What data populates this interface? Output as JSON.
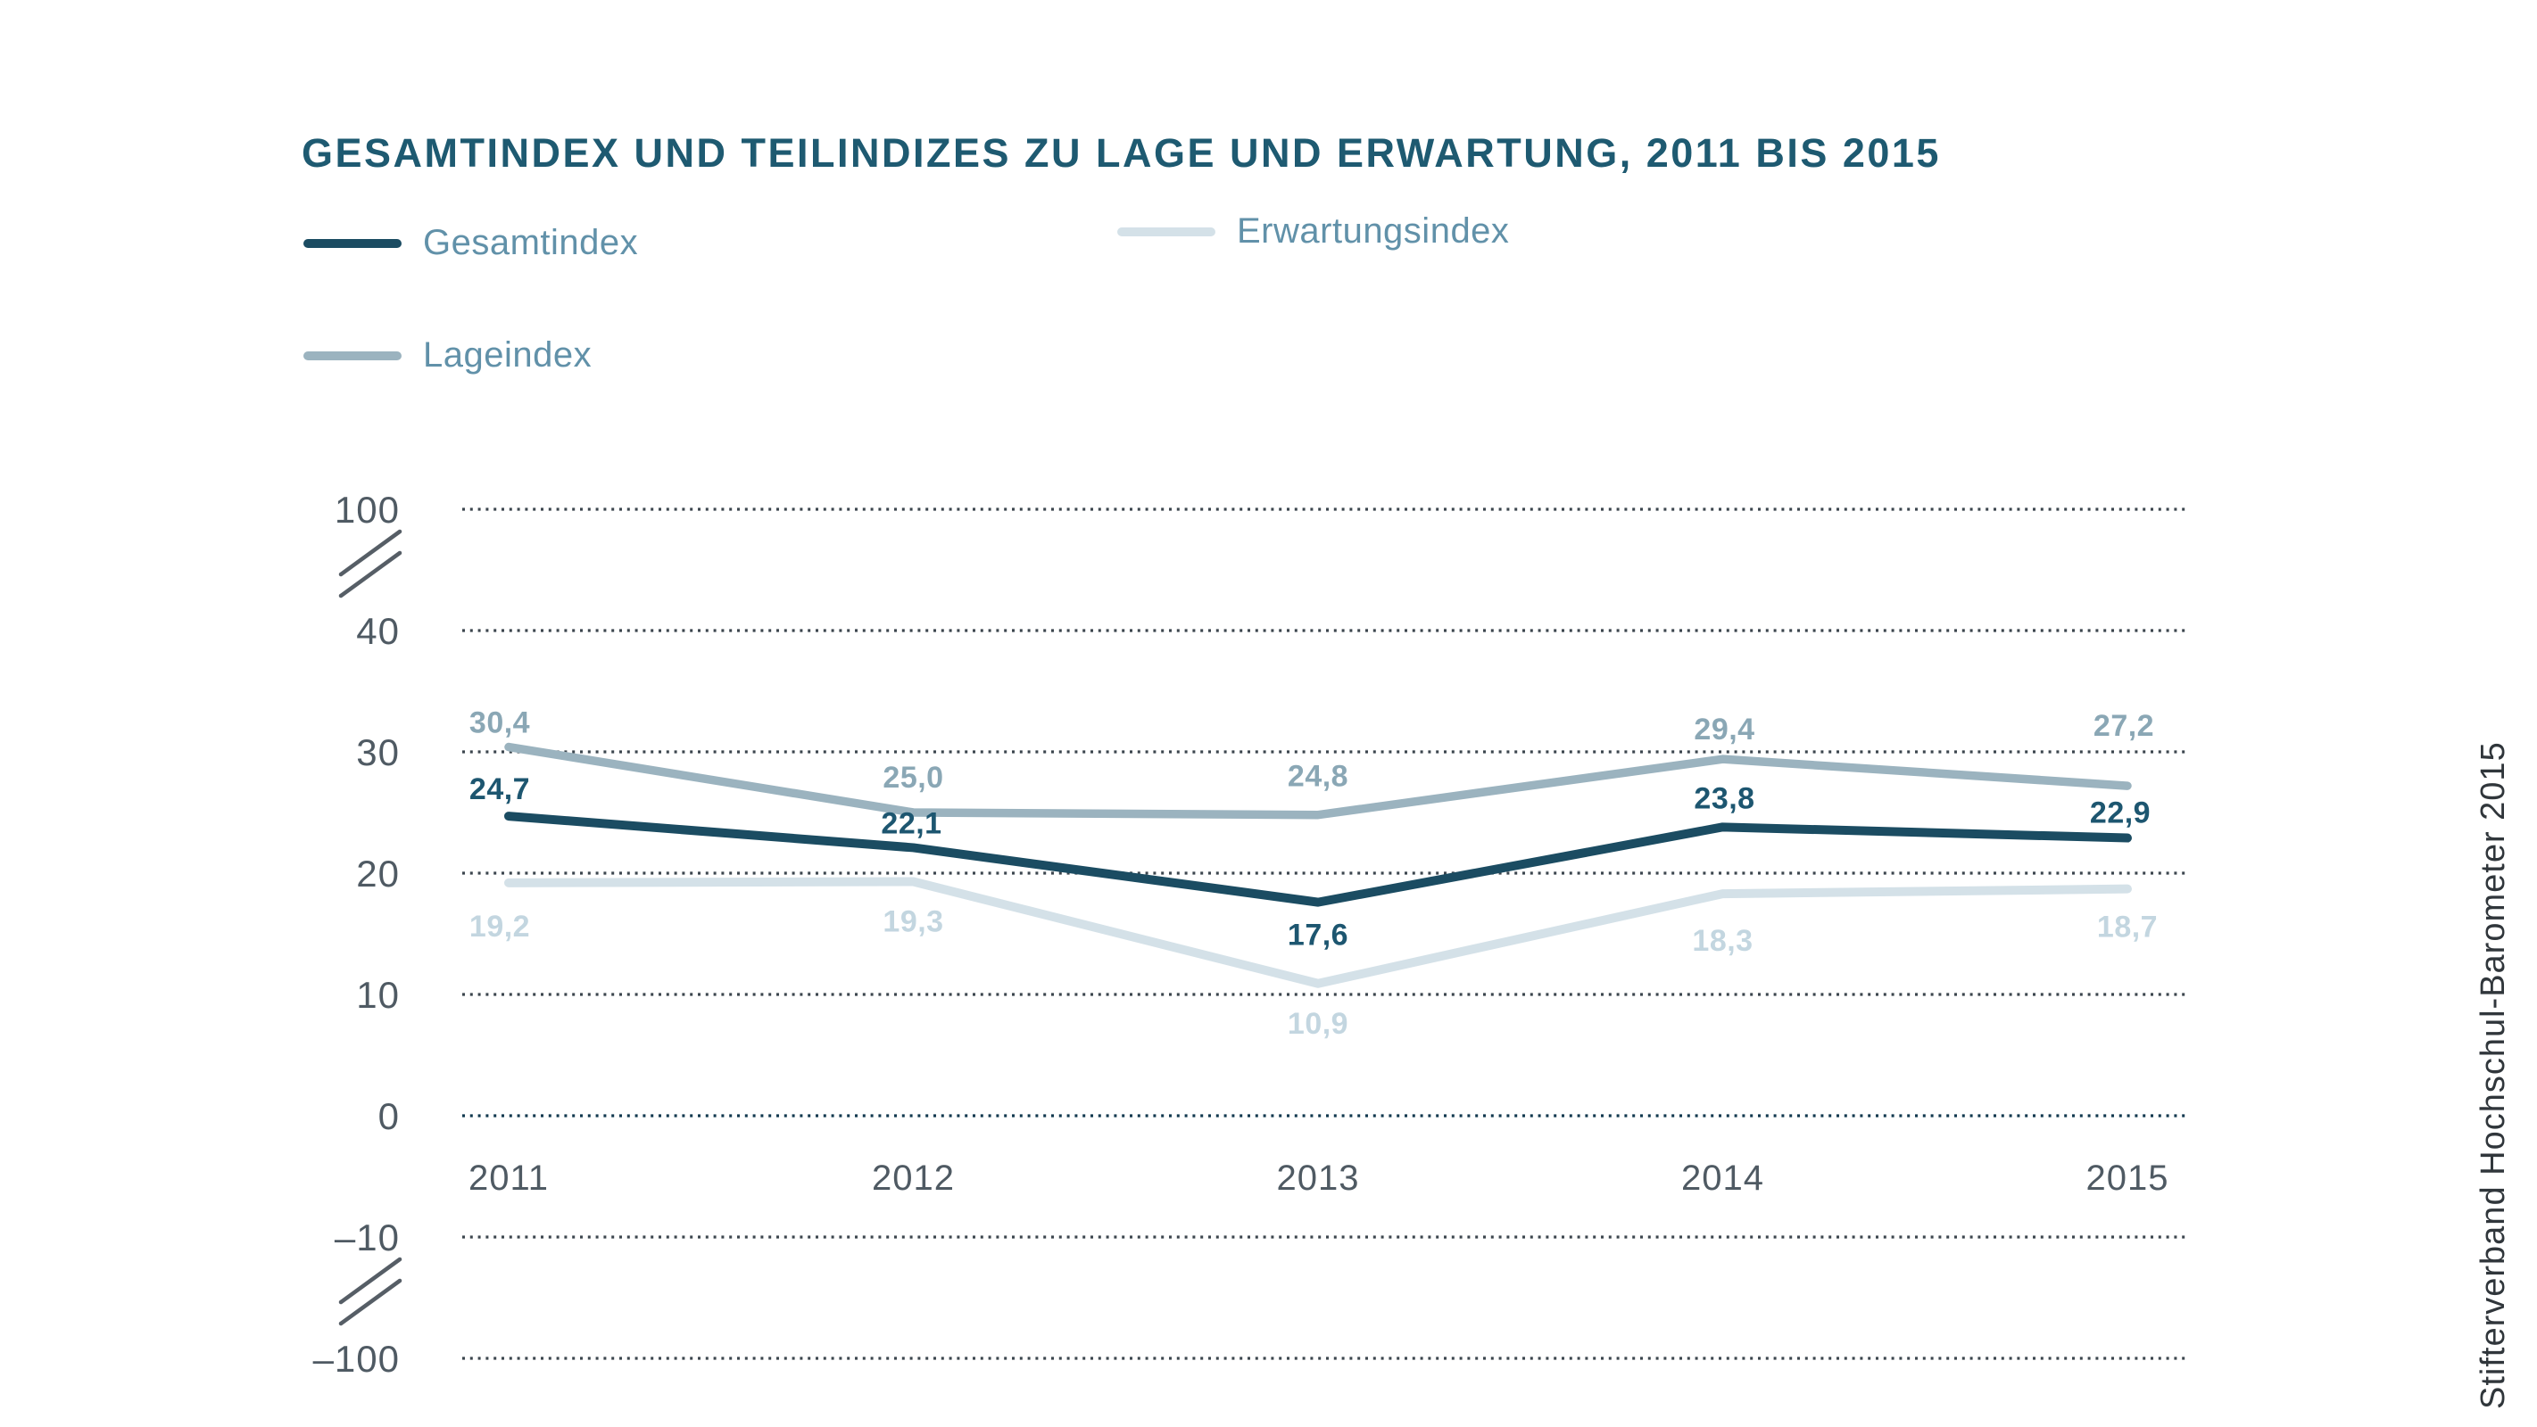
{
  "title": "GESAMTINDEX UND TEILINDIZES ZU LAGE UND ERWARTUNG, 2011 BIS 2015",
  "source_note": "Stifterverband Hochschul-Barometer 2015",
  "colors": {
    "background": "#ffffff",
    "title": "#1e5a71",
    "legend_text": "#6191a9",
    "axis_text": "#4f5a63",
    "grid_dots": "#3c464e",
    "grid_zero_dots": "#10384e",
    "break_mark": "#565e66",
    "source_text": "#30363b"
  },
  "legend": {
    "items": [
      {
        "label": "Gesamtindex",
        "color": "#1b4c62"
      },
      {
        "label": "Erwartungsindex",
        "color": "#d4e1e8"
      },
      {
        "label": "Lageindex",
        "color": "#9bb3bf"
      }
    ]
  },
  "chart_data": {
    "type": "line",
    "title": "GESAMTINDEX UND TEILINDIZES ZU LAGE UND ERWARTUNG, 2011 BIS 2015",
    "x_categories": [
      "2011",
      "2012",
      "2013",
      "2014",
      "2015"
    ],
    "y_axis": {
      "tick_labels": [
        "100",
        "40",
        "30",
        "20",
        "10",
        "0",
        "–10",
        "–100"
      ],
      "tick_values": [
        100,
        40,
        30,
        20,
        10,
        0,
        -10,
        -100
      ],
      "broken_axis": true,
      "breaks": [
        [
          100,
          40
        ],
        [
          -10,
          -100
        ]
      ],
      "linear_range": [
        -10,
        40
      ],
      "grid": "horizontal dotted lines, zero line darker"
    },
    "legend_position": "top-left, two columns",
    "series": [
      {
        "name": "Gesamtindex",
        "color": "#1b4c62",
        "label_color": "#1d5670",
        "line_width": 10,
        "values": [
          24.7,
          22.1,
          17.6,
          23.8,
          22.9
        ],
        "value_labels": [
          "24,7",
          "22,1",
          "17,6",
          "23,8",
          "22,9"
        ],
        "label_offsets": [
          [
            -10,
            -31
          ],
          [
            -2,
            -28
          ],
          [
            0,
            36
          ],
          [
            2,
            -33
          ],
          [
            -8,
            -29
          ]
        ]
      },
      {
        "name": "Lageindex",
        "color": "#9bb3bf",
        "label_color": "#8aa7b5",
        "line_width": 9.5,
        "values": [
          30.4,
          25.0,
          24.8,
          29.4,
          27.2
        ],
        "value_labels": [
          "30,4",
          "25,0",
          "24,8",
          "29,4",
          "27,2"
        ],
        "label_offsets": [
          [
            -10,
            -28
          ],
          [
            0,
            -40
          ],
          [
            0,
            -44
          ],
          [
            2,
            -34
          ],
          [
            -4,
            -68
          ]
        ]
      },
      {
        "name": "Erwartungsindex",
        "color": "#d4e1e8",
        "label_color": "#c3d6e0",
        "line_width": 10,
        "values": [
          19.2,
          19.3,
          10.9,
          18.3,
          18.7
        ],
        "value_labels": [
          "19,2",
          "19,3",
          "10,9",
          "18,3",
          "18,7"
        ],
        "label_offsets": [
          [
            -10,
            48
          ],
          [
            0,
            44
          ],
          [
            0,
            44
          ],
          [
            0,
            52
          ],
          [
            0,
            42
          ]
        ]
      }
    ]
  }
}
